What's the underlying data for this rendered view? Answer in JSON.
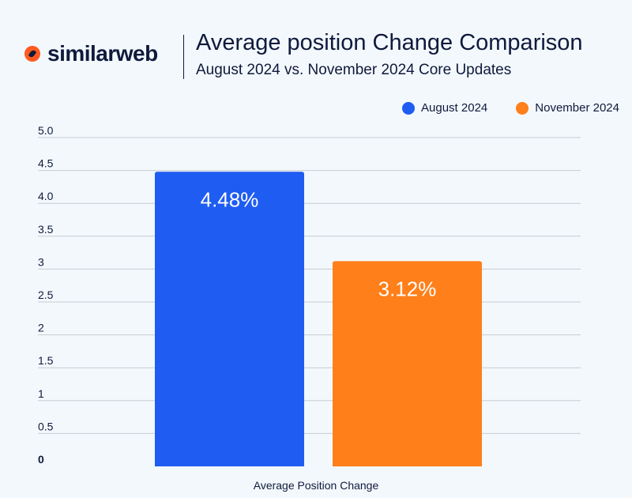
{
  "brand": {
    "name": "similarweb",
    "colors": [
      "#ff5a1f",
      "#0f1a3c"
    ]
  },
  "header": {
    "title": "Average position Change Comparison",
    "subtitle": "August 2024 vs. November 2024 Core Updates"
  },
  "legend": {
    "placement": "top-right",
    "items": [
      {
        "label": "August 2024",
        "color": "#1f5cf2"
      },
      {
        "label": "November 2024",
        "color": "#ff7f1a"
      }
    ]
  },
  "chart_data": {
    "type": "bar",
    "xlabel": "Average Position Change",
    "ylabel": "",
    "categories": [
      "Average Position Change"
    ],
    "series": [
      {
        "name": "August 2024",
        "values": [
          4.48
        ],
        "data_label": "4.48%",
        "color": "#1f5cf2"
      },
      {
        "name": "November 2024",
        "values": [
          3.12
        ],
        "data_label": "3.12%",
        "color": "#ff7f1a"
      }
    ],
    "ylim": [
      0,
      5
    ],
    "ytick_values": [
      0,
      0.5,
      1,
      1.5,
      2,
      2.5,
      3,
      3.5,
      4,
      4.5,
      5
    ],
    "ytick_labels": [
      "0",
      "0.5",
      "1",
      "1.5",
      "2",
      "2.5",
      "3",
      "3.5",
      "4.0",
      "4.5",
      "5.0"
    ],
    "grid": true
  }
}
